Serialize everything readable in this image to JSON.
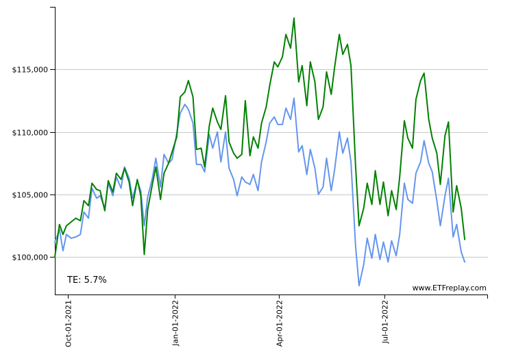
{
  "chart_data": {
    "type": "line",
    "title": "",
    "xlabel": "",
    "ylabel": "",
    "ylim": [
      97000,
      120000
    ],
    "y_ticks": [
      {
        "value": 100000,
        "label": "$100,000"
      },
      {
        "value": 105000,
        "label": "$105,000"
      },
      {
        "value": 110000,
        "label": "$110,000"
      },
      {
        "value": 115000,
        "label": "$115,000"
      }
    ],
    "x_range": [
      "2021-09-20",
      "2022-09-28"
    ],
    "x_ticks": [
      {
        "date": "2021-10-01",
        "label": "Oct-01-2021"
      },
      {
        "date": "2022-01-01",
        "label": "Jan-01-2022"
      },
      {
        "date": "2022-04-01",
        "label": "Apr-01-2022"
      },
      {
        "date": "2022-07-01",
        "label": "Jul-01-2022"
      }
    ],
    "grid": "horizontal",
    "colors": {
      "series_1": "#008000",
      "series_2": "#6495ED"
    },
    "series": [
      {
        "values": [
          [
            "2021-09-20",
            100000
          ],
          [
            "2021-09-24",
            102600
          ],
          [
            "2021-09-27",
            101800
          ],
          [
            "2021-09-30",
            102500
          ],
          [
            "2021-10-04",
            102800
          ],
          [
            "2021-10-08",
            103100
          ],
          [
            "2021-10-12",
            102900
          ],
          [
            "2021-10-15",
            104500
          ],
          [
            "2021-10-19",
            104100
          ],
          [
            "2021-10-22",
            105900
          ],
          [
            "2021-10-26",
            105400
          ],
          [
            "2021-10-29",
            105300
          ],
          [
            "2021-11-02",
            103700
          ],
          [
            "2021-11-05",
            106100
          ],
          [
            "2021-11-09",
            105200
          ],
          [
            "2021-11-12",
            106700
          ],
          [
            "2021-11-16",
            106200
          ],
          [
            "2021-11-19",
            107100
          ],
          [
            "2021-11-23",
            106000
          ],
          [
            "2021-11-26",
            104100
          ],
          [
            "2021-11-30",
            106200
          ],
          [
            "2021-12-03",
            104900
          ],
          [
            "2021-12-06",
            100200
          ],
          [
            "2021-12-09",
            103800
          ],
          [
            "2021-12-13",
            105800
          ],
          [
            "2021-12-16",
            107200
          ],
          [
            "2021-12-20",
            104600
          ],
          [
            "2021-12-23",
            106700
          ],
          [
            "2021-12-27",
            107500
          ],
          [
            "2021-12-30",
            108400
          ],
          [
            "2022-01-03",
            109600
          ],
          [
            "2022-01-06",
            112800
          ],
          [
            "2022-01-10",
            113200
          ],
          [
            "2022-01-13",
            114100
          ],
          [
            "2022-01-17",
            112800
          ],
          [
            "2022-01-20",
            108600
          ],
          [
            "2022-01-24",
            108700
          ],
          [
            "2022-01-27",
            107200
          ],
          [
            "2022-01-31",
            110500
          ],
          [
            "2022-02-03",
            111900
          ],
          [
            "2022-02-07",
            110800
          ],
          [
            "2022-02-10",
            110200
          ],
          [
            "2022-02-14",
            112900
          ],
          [
            "2022-02-17",
            109200
          ],
          [
            "2022-02-21",
            108300
          ],
          [
            "2022-02-24",
            107900
          ],
          [
            "2022-02-28",
            108200
          ],
          [
            "2022-03-03",
            112500
          ],
          [
            "2022-03-07",
            108100
          ],
          [
            "2022-03-10",
            109600
          ],
          [
            "2022-03-14",
            108700
          ],
          [
            "2022-03-17",
            110700
          ],
          [
            "2022-03-21",
            112000
          ],
          [
            "2022-03-24",
            113700
          ],
          [
            "2022-03-28",
            115600
          ],
          [
            "2022-03-31",
            115200
          ],
          [
            "2022-04-04",
            116000
          ],
          [
            "2022-04-07",
            117800
          ],
          [
            "2022-04-11",
            116700
          ],
          [
            "2022-04-14",
            119100
          ],
          [
            "2022-04-18",
            114000
          ],
          [
            "2022-04-21",
            115300
          ],
          [
            "2022-04-25",
            112100
          ],
          [
            "2022-04-28",
            115600
          ],
          [
            "2022-05-02",
            114000
          ],
          [
            "2022-05-05",
            111000
          ],
          [
            "2022-05-09",
            112000
          ],
          [
            "2022-05-12",
            114800
          ],
          [
            "2022-05-16",
            113000
          ],
          [
            "2022-05-19",
            115200
          ],
          [
            "2022-05-23",
            117800
          ],
          [
            "2022-05-26",
            116200
          ],
          [
            "2022-05-30",
            117000
          ],
          [
            "2022-06-02",
            115300
          ],
          [
            "2022-06-06",
            107300
          ],
          [
            "2022-06-09",
            102500
          ],
          [
            "2022-06-13",
            103900
          ],
          [
            "2022-06-16",
            105900
          ],
          [
            "2022-06-20",
            104200
          ],
          [
            "2022-06-23",
            106900
          ],
          [
            "2022-06-27",
            104200
          ],
          [
            "2022-06-30",
            106000
          ],
          [
            "2022-07-04",
            103300
          ],
          [
            "2022-07-07",
            105300
          ],
          [
            "2022-07-11",
            103800
          ],
          [
            "2022-07-14",
            106400
          ],
          [
            "2022-07-18",
            110900
          ],
          [
            "2022-07-21",
            109500
          ],
          [
            "2022-07-25",
            108700
          ],
          [
            "2022-07-28",
            112600
          ],
          [
            "2022-08-01",
            114100
          ],
          [
            "2022-08-04",
            114700
          ],
          [
            "2022-08-08",
            111000
          ],
          [
            "2022-08-11",
            109500
          ],
          [
            "2022-08-15",
            108300
          ],
          [
            "2022-08-18",
            105800
          ],
          [
            "2022-08-22",
            109700
          ],
          [
            "2022-08-25",
            110800
          ],
          [
            "2022-08-29",
            103600
          ],
          [
            "2022-09-01",
            105700
          ],
          [
            "2022-09-05",
            103900
          ],
          [
            "2022-09-08",
            101400
          ]
        ]
      },
      {
        "values": [
          [
            "2021-09-20",
            101200
          ],
          [
            "2021-09-24",
            102200
          ],
          [
            "2021-09-27",
            100500
          ],
          [
            "2021-09-30",
            101800
          ],
          [
            "2021-10-04",
            101500
          ],
          [
            "2021-10-08",
            101600
          ],
          [
            "2021-10-12",
            101800
          ],
          [
            "2021-10-15",
            103600
          ],
          [
            "2021-10-19",
            103100
          ],
          [
            "2021-10-22",
            105500
          ],
          [
            "2021-10-26",
            104700
          ],
          [
            "2021-10-29",
            104900
          ],
          [
            "2021-11-02",
            103900
          ],
          [
            "2021-11-05",
            105900
          ],
          [
            "2021-11-09",
            104900
          ],
          [
            "2021-11-12",
            106400
          ],
          [
            "2021-11-16",
            105500
          ],
          [
            "2021-11-19",
            107200
          ],
          [
            "2021-11-23",
            106300
          ],
          [
            "2021-11-26",
            104700
          ],
          [
            "2021-11-30",
            106100
          ],
          [
            "2021-12-03",
            105300
          ],
          [
            "2021-12-06",
            102500
          ],
          [
            "2021-12-09",
            104800
          ],
          [
            "2021-12-13",
            106300
          ],
          [
            "2021-12-16",
            107900
          ],
          [
            "2021-12-20",
            105600
          ],
          [
            "2021-12-23",
            108200
          ],
          [
            "2021-12-27",
            107500
          ],
          [
            "2021-12-30",
            107800
          ],
          [
            "2022-01-03",
            109900
          ],
          [
            "2022-01-06",
            111500
          ],
          [
            "2022-01-10",
            112200
          ],
          [
            "2022-01-13",
            111800
          ],
          [
            "2022-01-17",
            110700
          ],
          [
            "2022-01-20",
            107400
          ],
          [
            "2022-01-24",
            107400
          ],
          [
            "2022-01-27",
            106800
          ],
          [
            "2022-01-31",
            109800
          ],
          [
            "2022-02-03",
            108700
          ],
          [
            "2022-02-07",
            110000
          ],
          [
            "2022-02-10",
            107600
          ],
          [
            "2022-02-14",
            110000
          ],
          [
            "2022-02-17",
            107100
          ],
          [
            "2022-02-21",
            106200
          ],
          [
            "2022-02-24",
            104900
          ],
          [
            "2022-02-28",
            106400
          ],
          [
            "2022-03-03",
            106000
          ],
          [
            "2022-03-07",
            105800
          ],
          [
            "2022-03-10",
            106600
          ],
          [
            "2022-03-14",
            105300
          ],
          [
            "2022-03-17",
            107600
          ],
          [
            "2022-03-21",
            109200
          ],
          [
            "2022-03-24",
            110700
          ],
          [
            "2022-03-28",
            111200
          ],
          [
            "2022-03-31",
            110600
          ],
          [
            "2022-04-04",
            110600
          ],
          [
            "2022-04-07",
            111900
          ],
          [
            "2022-04-11",
            111000
          ],
          [
            "2022-04-14",
            112700
          ],
          [
            "2022-04-18",
            108400
          ],
          [
            "2022-04-21",
            108900
          ],
          [
            "2022-04-25",
            106600
          ],
          [
            "2022-04-28",
            108600
          ],
          [
            "2022-05-02",
            107100
          ],
          [
            "2022-05-05",
            105000
          ],
          [
            "2022-05-09",
            105600
          ],
          [
            "2022-05-12",
            107900
          ],
          [
            "2022-05-16",
            105300
          ],
          [
            "2022-05-19",
            107000
          ],
          [
            "2022-05-23",
            110000
          ],
          [
            "2022-05-26",
            108300
          ],
          [
            "2022-05-30",
            109500
          ],
          [
            "2022-06-02",
            107600
          ],
          [
            "2022-06-06",
            100900
          ],
          [
            "2022-06-09",
            97700
          ],
          [
            "2022-06-13",
            99400
          ],
          [
            "2022-06-16",
            101500
          ],
          [
            "2022-06-20",
            99900
          ],
          [
            "2022-06-23",
            101800
          ],
          [
            "2022-06-27",
            99800
          ],
          [
            "2022-06-30",
            101200
          ],
          [
            "2022-07-04",
            99600
          ],
          [
            "2022-07-07",
            101300
          ],
          [
            "2022-07-11",
            100100
          ],
          [
            "2022-07-14",
            101800
          ],
          [
            "2022-07-18",
            105900
          ],
          [
            "2022-07-21",
            104600
          ],
          [
            "2022-07-25",
            104300
          ],
          [
            "2022-07-28",
            106700
          ],
          [
            "2022-08-01",
            107600
          ],
          [
            "2022-08-04",
            109300
          ],
          [
            "2022-08-08",
            107500
          ],
          [
            "2022-08-11",
            106800
          ],
          [
            "2022-08-15",
            104500
          ],
          [
            "2022-08-18",
            102500
          ],
          [
            "2022-08-22",
            104900
          ],
          [
            "2022-08-25",
            106300
          ],
          [
            "2022-08-29",
            101600
          ],
          [
            "2022-09-01",
            102600
          ],
          [
            "2022-09-05",
            100400
          ],
          [
            "2022-09-08",
            99600
          ]
        ]
      }
    ],
    "annotations": [
      "TE:  5.7%",
      "www.ETFreplay.com"
    ]
  }
}
